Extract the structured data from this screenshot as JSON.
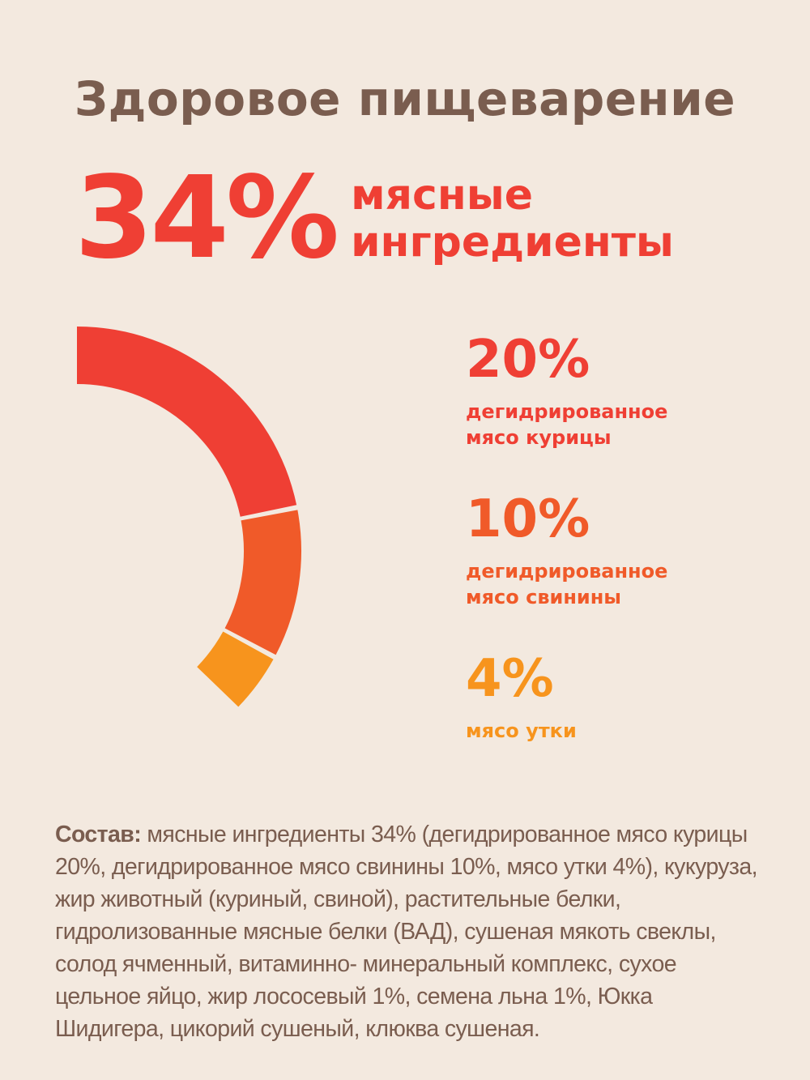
{
  "title": "Здоровое пищеварение",
  "headline": {
    "percent": "34%",
    "label_line1": "мясные",
    "label_line2": "ингредиенты"
  },
  "colors": {
    "background": "#f3e9df",
    "title": "#7a5d4f",
    "red": "#ef3f34",
    "orange": "#f05a29",
    "amber": "#f7941d"
  },
  "chart_data": {
    "type": "pie",
    "variant": "half-ring arc",
    "total_percent": 34,
    "series": [
      {
        "label_line1": "дегидрированное",
        "label_line2": "мясо курицы",
        "value": 20,
        "display": "20%",
        "color": "#ef3f34"
      },
      {
        "label_line1": "дегидрированное",
        "label_line2": "мясо свинины",
        "value": 10,
        "display": "10%",
        "color": "#f05a29"
      },
      {
        "label_line1": "мясо утки",
        "label_line2": "",
        "value": 4,
        "display": "4%",
        "color": "#f7941d"
      }
    ]
  },
  "composition": {
    "label": "Состав:",
    "text": " мясные ингредиенты 34% (дегидрированное мясо курицы 20%, дегидрированное мясо свинины 10%, мясо утки 4%), кукуруза, жир животный (куриный, свиной), растительные белки, гидролизованные мясные белки (ВАД), сушеная мякоть свеклы, солод ячменный, витаминно- минеральный комплекс, сухое цельное яйцо, жир лососевый 1%, семена льна 1%, Юкка Шидигера, цикорий сушеный, клюква сушеная."
  }
}
